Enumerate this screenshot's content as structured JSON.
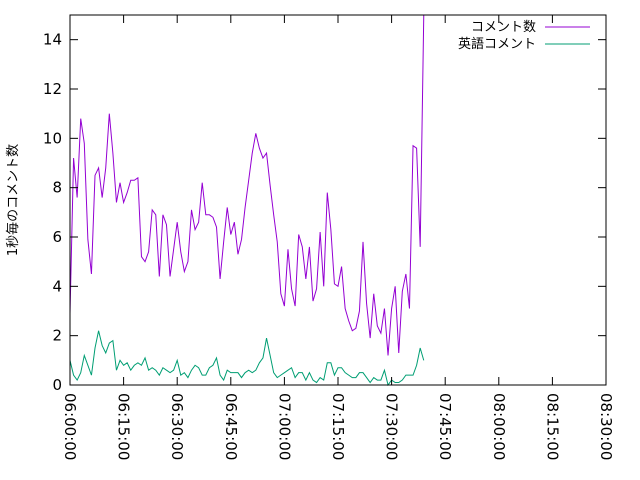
{
  "chart_data": {
    "type": "line",
    "title": "",
    "xlabel": "",
    "ylabel": "1秒毎のコメント数",
    "xlim": [
      "06:00:00",
      "08:30:00"
    ],
    "ylim": [
      0,
      15
    ],
    "grid": false,
    "legend_position": "top-right",
    "x_ticks": [
      "06:00:00",
      "06:15:00",
      "06:30:00",
      "06:45:00",
      "07:00:00",
      "07:15:00",
      "07:30:00",
      "07:45:00",
      "08:00:00",
      "08:15:00",
      "08:30:00"
    ],
    "y_ticks": [
      "0",
      "2",
      "4",
      "6",
      "8",
      "10",
      "12",
      "14"
    ],
    "series": [
      {
        "name": "コメント数",
        "color": "#9400d3",
        "points": [
          [
            "06:00:00",
            2.9
          ],
          [
            "06:01:00",
            9.2
          ],
          [
            "06:02:00",
            7.6
          ],
          [
            "06:03:00",
            10.8
          ],
          [
            "06:04:00",
            9.8
          ],
          [
            "06:05:00",
            5.9
          ],
          [
            "06:06:00",
            4.5
          ],
          [
            "06:07:00",
            8.5
          ],
          [
            "06:08:00",
            8.8
          ],
          [
            "06:09:00",
            7.6
          ],
          [
            "06:10:00",
            8.8
          ],
          [
            "06:11:00",
            11.0
          ],
          [
            "06:12:00",
            9.4
          ],
          [
            "06:13:00",
            7.4
          ],
          [
            "06:14:00",
            8.2
          ],
          [
            "06:15:00",
            7.4
          ],
          [
            "06:16:00",
            7.8
          ],
          [
            "06:17:00",
            8.3
          ],
          [
            "06:18:00",
            8.3
          ],
          [
            "06:19:00",
            8.4
          ],
          [
            "06:20:00",
            5.2
          ],
          [
            "06:21:00",
            5.0
          ],
          [
            "06:22:00",
            5.4
          ],
          [
            "06:23:00",
            7.1
          ],
          [
            "06:24:00",
            6.9
          ],
          [
            "06:25:00",
            4.4
          ],
          [
            "06:26:00",
            6.9
          ],
          [
            "06:27:00",
            6.5
          ],
          [
            "06:28:00",
            4.4
          ],
          [
            "06:29:00",
            5.5
          ],
          [
            "06:30:00",
            6.6
          ],
          [
            "06:31:00",
            5.4
          ],
          [
            "06:32:00",
            4.6
          ],
          [
            "06:33:00",
            5.0
          ],
          [
            "06:34:00",
            7.1
          ],
          [
            "06:35:00",
            6.3
          ],
          [
            "06:36:00",
            6.6
          ],
          [
            "06:37:00",
            8.2
          ],
          [
            "06:38:00",
            6.9
          ],
          [
            "06:39:00",
            6.9
          ],
          [
            "06:40:00",
            6.8
          ],
          [
            "06:41:00",
            6.4
          ],
          [
            "06:42:00",
            4.3
          ],
          [
            "06:43:00",
            5.8
          ],
          [
            "06:44:00",
            7.2
          ],
          [
            "06:45:00",
            6.1
          ],
          [
            "06:46:00",
            6.6
          ],
          [
            "06:47:00",
            5.3
          ],
          [
            "06:48:00",
            5.9
          ],
          [
            "06:49:00",
            7.2
          ],
          [
            "06:50:00",
            8.3
          ],
          [
            "06:51:00",
            9.4
          ],
          [
            "06:52:00",
            10.2
          ],
          [
            "06:53:00",
            9.6
          ],
          [
            "06:54:00",
            9.2
          ],
          [
            "06:55:00",
            9.4
          ],
          [
            "06:56:00",
            8.1
          ],
          [
            "06:57:00",
            6.9
          ],
          [
            "06:58:00",
            5.8
          ],
          [
            "06:59:00",
            3.7
          ],
          [
            "07:00:00",
            3.2
          ],
          [
            "07:01:00",
            5.5
          ],
          [
            "07:02:00",
            3.9
          ],
          [
            "07:03:00",
            3.2
          ],
          [
            "07:04:00",
            6.1
          ],
          [
            "07:05:00",
            5.6
          ],
          [
            "07:06:00",
            4.3
          ],
          [
            "07:07:00",
            5.6
          ],
          [
            "07:08:00",
            3.4
          ],
          [
            "07:09:00",
            3.9
          ],
          [
            "07:10:00",
            6.2
          ],
          [
            "07:11:00",
            4.0
          ],
          [
            "07:12:00",
            7.8
          ],
          [
            "07:13:00",
            6.3
          ],
          [
            "07:14:00",
            4.1
          ],
          [
            "07:15:00",
            4.0
          ],
          [
            "07:16:00",
            4.8
          ],
          [
            "07:17:00",
            3.1
          ],
          [
            "07:18:00",
            2.6
          ],
          [
            "07:19:00",
            2.2
          ],
          [
            "07:20:00",
            2.3
          ],
          [
            "07:21:00",
            3.0
          ],
          [
            "07:22:00",
            5.8
          ],
          [
            "07:23:00",
            3.3
          ],
          [
            "07:24:00",
            1.9
          ],
          [
            "07:25:00",
            3.7
          ],
          [
            "07:26:00",
            2.4
          ],
          [
            "07:27:00",
            2.1
          ],
          [
            "07:28:00",
            3.1
          ],
          [
            "07:29:00",
            1.2
          ],
          [
            "07:30:00",
            3.1
          ],
          [
            "07:31:00",
            4.0
          ],
          [
            "07:32:00",
            1.3
          ],
          [
            "07:33:00",
            3.8
          ],
          [
            "07:34:00",
            4.5
          ],
          [
            "07:35:00",
            3.1
          ],
          [
            "07:36:00",
            9.7
          ],
          [
            "07:37:00",
            9.6
          ],
          [
            "07:38:00",
            5.6
          ],
          [
            "07:39:00",
            15.0
          ]
        ]
      },
      {
        "name": "英語コメント",
        "color": "#009e73",
        "points": [
          [
            "06:00:00",
            1.0
          ],
          [
            "06:01:00",
            0.4
          ],
          [
            "06:02:00",
            0.2
          ],
          [
            "06:03:00",
            0.5
          ],
          [
            "06:04:00",
            1.2
          ],
          [
            "06:05:00",
            0.8
          ],
          [
            "06:06:00",
            0.4
          ],
          [
            "06:07:00",
            1.5
          ],
          [
            "06:08:00",
            2.2
          ],
          [
            "06:09:00",
            1.6
          ],
          [
            "06:10:00",
            1.3
          ],
          [
            "06:11:00",
            1.7
          ],
          [
            "06:12:00",
            1.8
          ],
          [
            "06:13:00",
            0.6
          ],
          [
            "06:14:00",
            1.0
          ],
          [
            "06:15:00",
            0.8
          ],
          [
            "06:16:00",
            0.9
          ],
          [
            "06:17:00",
            0.6
          ],
          [
            "06:18:00",
            0.8
          ],
          [
            "06:19:00",
            0.9
          ],
          [
            "06:20:00",
            0.8
          ],
          [
            "06:21:00",
            1.1
          ],
          [
            "06:22:00",
            0.6
          ],
          [
            "06:23:00",
            0.7
          ],
          [
            "06:24:00",
            0.6
          ],
          [
            "06:25:00",
            0.4
          ],
          [
            "06:26:00",
            0.7
          ],
          [
            "06:27:00",
            0.6
          ],
          [
            "06:28:00",
            0.5
          ],
          [
            "06:29:00",
            0.6
          ],
          [
            "06:30:00",
            1.0
          ],
          [
            "06:31:00",
            0.4
          ],
          [
            "06:32:00",
            0.5
          ],
          [
            "06:33:00",
            0.3
          ],
          [
            "06:34:00",
            0.6
          ],
          [
            "06:35:00",
            0.8
          ],
          [
            "06:36:00",
            0.7
          ],
          [
            "06:37:00",
            0.4
          ],
          [
            "06:38:00",
            0.4
          ],
          [
            "06:39:00",
            0.7
          ],
          [
            "06:40:00",
            0.8
          ],
          [
            "06:41:00",
            1.1
          ],
          [
            "06:42:00",
            0.4
          ],
          [
            "06:43:00",
            0.2
          ],
          [
            "06:44:00",
            0.6
          ],
          [
            "06:45:00",
            0.5
          ],
          [
            "06:46:00",
            0.5
          ],
          [
            "06:47:00",
            0.5
          ],
          [
            "06:48:00",
            0.3
          ],
          [
            "06:49:00",
            0.5
          ],
          [
            "06:50:00",
            0.6
          ],
          [
            "06:51:00",
            0.5
          ],
          [
            "06:52:00",
            0.6
          ],
          [
            "06:53:00",
            0.9
          ],
          [
            "06:54:00",
            1.1
          ],
          [
            "06:55:00",
            1.9
          ],
          [
            "06:56:00",
            1.2
          ],
          [
            "06:57:00",
            0.5
          ],
          [
            "06:58:00",
            0.3
          ],
          [
            "06:59:00",
            0.4
          ],
          [
            "07:00:00",
            0.5
          ],
          [
            "07:01:00",
            0.6
          ],
          [
            "07:02:00",
            0.7
          ],
          [
            "07:03:00",
            0.3
          ],
          [
            "07:04:00",
            0.5
          ],
          [
            "07:05:00",
            0.5
          ],
          [
            "07:06:00",
            0.2
          ],
          [
            "07:07:00",
            0.5
          ],
          [
            "07:08:00",
            0.2
          ],
          [
            "07:09:00",
            0.1
          ],
          [
            "07:10:00",
            0.3
          ],
          [
            "07:11:00",
            0.2
          ],
          [
            "07:12:00",
            0.9
          ],
          [
            "07:13:00",
            0.9
          ],
          [
            "07:14:00",
            0.4
          ],
          [
            "07:15:00",
            0.7
          ],
          [
            "07:16:00",
            0.7
          ],
          [
            "07:17:00",
            0.5
          ],
          [
            "07:18:00",
            0.4
          ],
          [
            "07:19:00",
            0.3
          ],
          [
            "07:20:00",
            0.3
          ],
          [
            "07:21:00",
            0.5
          ],
          [
            "07:22:00",
            0.5
          ],
          [
            "07:23:00",
            0.3
          ],
          [
            "07:24:00",
            0.1
          ],
          [
            "07:25:00",
            0.3
          ],
          [
            "07:26:00",
            0.2
          ],
          [
            "07:27:00",
            0.2
          ],
          [
            "07:28:00",
            0.6
          ],
          [
            "07:29:00",
            0.0
          ],
          [
            "07:30:00",
            0.2
          ],
          [
            "07:31:00",
            0.1
          ],
          [
            "07:32:00",
            0.1
          ],
          [
            "07:33:00",
            0.2
          ],
          [
            "07:34:00",
            0.4
          ],
          [
            "07:35:00",
            0.4
          ],
          [
            "07:36:00",
            0.4
          ],
          [
            "07:37:00",
            0.8
          ],
          [
            "07:38:00",
            1.5
          ],
          [
            "07:39:00",
            1.0
          ]
        ]
      }
    ]
  }
}
